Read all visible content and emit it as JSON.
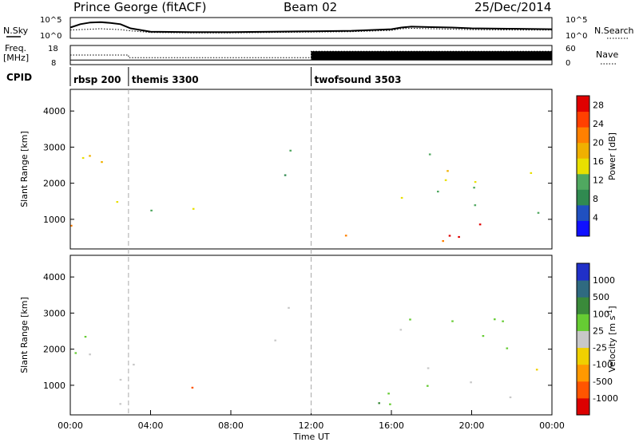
{
  "header": {
    "title": "Prince George (fitACF)",
    "beam": "Beam 02",
    "date": "25/Dec/2014"
  },
  "colors": {
    "power_scale": [
      "#1010ff",
      "#2050c0",
      "#308a50",
      "#50a860",
      "#e8e000",
      "#f0b000",
      "#ff8000",
      "#ff4000",
      "#e00000"
    ],
    "velocity_scale": [
      "#2030c8",
      "#2f6a80",
      "#3a8a3a",
      "#66cc33",
      "#c8c8c8",
      "#f0d000",
      "#ff9900",
      "#ff5500",
      "#dd0000"
    ]
  },
  "chart_data": [
    {
      "type": "line",
      "name": "status-panel",
      "left_label": "N.Sky",
      "right_label": "N.Search",
      "y_ticks_left": [
        "10^5",
        "10^0"
      ],
      "y_ticks_right": [
        "10^5",
        "10^0"
      ],
      "x": [
        0,
        0.5,
        1,
        1.5,
        2,
        2.5,
        3,
        4,
        6,
        8,
        10,
        12,
        14,
        16,
        16.5,
        17,
        18,
        19,
        20,
        22,
        24
      ],
      "n_sky": [
        2.6,
        3.4,
        3.8,
        3.9,
        3.7,
        3.4,
        2.4,
        1.6,
        1.5,
        1.5,
        1.6,
        1.7,
        1.8,
        2.2,
        2.6,
        2.8,
        2.7,
        2.6,
        2.4,
        2.3,
        2.2
      ],
      "n_search": [
        2.0,
        2.1,
        2.2,
        2.3,
        2.2,
        2.1,
        1.8,
        1.4,
        1.3,
        1.3,
        1.4,
        1.5,
        1.6,
        1.9,
        2.3,
        2.4,
        2.3,
        2.2,
        2.1,
        2.0,
        2.0
      ]
    },
    {
      "type": "line",
      "name": "freq-nave-panel",
      "left_label_1": "Freq.",
      "left_label_2": "[MHz]",
      "right_label": "Nave",
      "y_ticks_left": [
        "18",
        "8"
      ],
      "y_ticks_right": [
        "60",
        "0"
      ],
      "cpid_label": "CPID",
      "cpid_segments": [
        {
          "start": 0,
          "label": "rbsp 200"
        },
        {
          "start": 2.9,
          "label": "themis 3300"
        },
        {
          "start": 12,
          "label": "twofsound 3503"
        }
      ],
      "freq_mhz": {
        "x": [
          0,
          24
        ],
        "y": [
          10.4,
          10.4
        ]
      },
      "nave": {
        "x": [
          0,
          2.9,
          2.9,
          12,
          12,
          24
        ],
        "y": [
          30,
          30,
          22,
          22,
          42,
          42
        ]
      }
    },
    {
      "type": "heatmap",
      "name": "power-panel",
      "ylabel": "Slant Range [km]",
      "ylim": [
        180,
        4600
      ],
      "y_ticks": [
        1000,
        2000,
        3000,
        4000
      ],
      "colorbar_label": "Power [dB]",
      "colorbar_ticks": [
        4,
        8,
        12,
        16,
        20,
        24,
        28
      ],
      "colorbar_range": [
        0,
        30
      ]
    },
    {
      "type": "heatmap",
      "name": "velocity-panel",
      "ylabel": "Slant Range [km]",
      "ylim": [
        180,
        4600
      ],
      "y_ticks": [
        1000,
        2000,
        3000,
        4000
      ],
      "colorbar_label": "Velocity [m s",
      "colorbar_label_sup": "-1",
      "colorbar_label_close": "]",
      "colorbar_ticks": [
        "1000",
        "500",
        "100",
        "25",
        "-25",
        "-100",
        "-500",
        "-1000"
      ],
      "xlabel": "Time UT",
      "x_ticks": [
        "00:00",
        "04:00",
        "08:00",
        "12:00",
        "16:00",
        "20:00",
        "00:00"
      ],
      "xlim": [
        0,
        24
      ]
    }
  ]
}
